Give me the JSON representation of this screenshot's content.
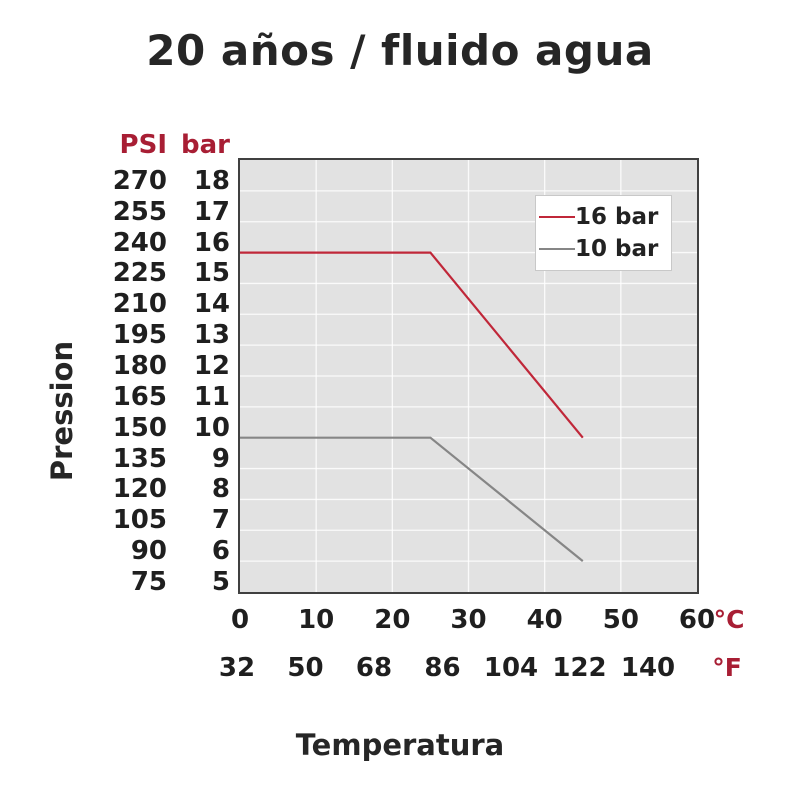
{
  "chart_data": {
    "type": "line",
    "title": "20 años / fluido agua",
    "xlabel": "Temperatura",
    "ylabel": "Pression",
    "x_axis": {
      "unit_primary": "°C",
      "unit_secondary": "°F",
      "ticks_celsius": [
        0,
        10,
        20,
        30,
        40,
        50,
        60
      ],
      "ticks_fahrenheit": [
        32,
        50,
        68,
        86,
        104,
        122,
        140
      ],
      "range_celsius": [
        0,
        60
      ]
    },
    "y_axis": {
      "unit_primary": "PSI",
      "unit_secondary": "bar",
      "ticks_psi": [
        270,
        255,
        240,
        225,
        210,
        195,
        180,
        165,
        150,
        135,
        120,
        105,
        90,
        75
      ],
      "ticks_bar": [
        18,
        17,
        16,
        15,
        14,
        13,
        12,
        11,
        10,
        9,
        8,
        7,
        6,
        5
      ],
      "range_bar": [
        5,
        19
      ]
    },
    "series": [
      {
        "name": "16 bar",
        "color": "#c02739",
        "points": [
          [
            0,
            16
          ],
          [
            25,
            16
          ],
          [
            45,
            10
          ]
        ]
      },
      {
        "name": "10 bar",
        "color": "#868686",
        "points": [
          [
            0,
            10
          ],
          [
            25,
            10
          ],
          [
            45,
            6
          ]
        ]
      }
    ],
    "legend_position": "top-right",
    "grid": true
  },
  "colors": {
    "accent": "#a81e34",
    "text": "#262626",
    "plot_background": "#e2e2e2",
    "plot_border": "#404040",
    "gridline": "#ffffff"
  }
}
